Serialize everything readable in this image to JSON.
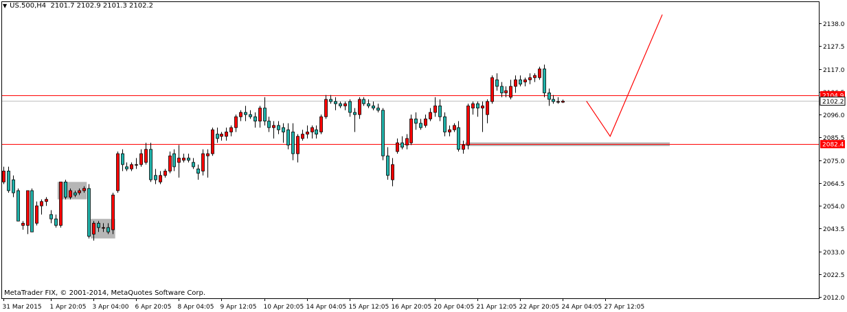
{
  "header": {
    "symbol_timeframe": "US.500,H4",
    "ohlc": "2101.7 2102.9 2101.3 2102.2"
  },
  "footer": {
    "copyright": "MetaTrader FIX, © 2001-2014, MetaQuotes Software Corp."
  },
  "colors": {
    "bull": "#ff0000",
    "bear": "#20b2aa",
    "outline": "#000000",
    "level": "#ff0000",
    "zone": "#a9a9a9",
    "projection": "#ff0000"
  },
  "chart_data": {
    "type": "candlestick",
    "title": "",
    "ylim": [
      2011.0,
      2143.8
    ],
    "y_ticks": [
      "2138.0",
      "2127.5",
      "2117.0",
      "2106.5",
      "2096.0",
      "2085.5",
      "2075.0",
      "2064.5",
      "2054.0",
      "2043.5",
      "2033.0",
      "2022.5",
      "2012.0"
    ],
    "x_ticks": [
      {
        "label": "31 Mar 2015",
        "index": 0
      },
      {
        "label": "1 Apr 20:05",
        "index": 10
      },
      {
        "label": "3 Apr 04:00",
        "index": 19
      },
      {
        "label": "6 Apr 20:05",
        "index": 28
      },
      {
        "label": "8 Apr 04:05",
        "index": 37
      },
      {
        "label": "9 Apr 12:05",
        "index": 46
      },
      {
        "label": "10 Apr 20:05",
        "index": 55
      },
      {
        "label": "14 Apr 04:05",
        "index": 64
      },
      {
        "label": "15 Apr 12:05",
        "index": 73
      },
      {
        "label": "16 Apr 20:05",
        "index": 82
      },
      {
        "label": "20 Apr 04:05",
        "index": 91
      },
      {
        "label": "21 Apr 12:05",
        "index": 100
      },
      {
        "label": "22 Apr 20:05",
        "index": 109
      },
      {
        "label": "24 Apr 04:05",
        "index": 118
      },
      {
        "label": "27 Apr 12:05",
        "index": 127
      }
    ],
    "candles": [
      {
        "o": 2065,
        "h": 2072,
        "l": 2064,
        "c": 2070
      },
      {
        "o": 2070,
        "h": 2072,
        "l": 2060,
        "c": 2061
      },
      {
        "o": 2066,
        "h": 2068,
        "l": 2058,
        "c": 2060
      },
      {
        "o": 2061,
        "h": 2062,
        "l": 2047,
        "c": 2047
      },
      {
        "o": 2045,
        "h": 2047,
        "l": 2043,
        "c": 2046
      },
      {
        "o": 2045,
        "h": 2061,
        "l": 2041,
        "c": 2061
      },
      {
        "o": 2061,
        "h": 2062,
        "l": 2042,
        "c": 2042
      },
      {
        "o": 2046,
        "h": 2056,
        "l": 2045,
        "c": 2054
      },
      {
        "o": 2054,
        "h": 2057,
        "l": 2050,
        "c": 2056
      },
      {
        "o": 2056,
        "h": 2058,
        "l": 2054,
        "c": 2057
      },
      {
        "o": 2050,
        "h": 2052,
        "l": 2046,
        "c": 2048
      },
      {
        "o": 2048,
        "h": 2050,
        "l": 2044,
        "c": 2045
      },
      {
        "o": 2045,
        "h": 2065,
        "l": 2044,
        "c": 2065
      },
      {
        "o": 2065,
        "h": 2066,
        "l": 2057,
        "c": 2058
      },
      {
        "o": 2058,
        "h": 2062,
        "l": 2057,
        "c": 2061
      },
      {
        "o": 2060,
        "h": 2061,
        "l": 2058,
        "c": 2059
      },
      {
        "o": 2060,
        "h": 2062,
        "l": 2059,
        "c": 2061
      },
      {
        "o": 2061,
        "h": 2063,
        "l": 2060,
        "c": 2062
      },
      {
        "o": 2062,
        "h": 2064,
        "l": 2039,
        "c": 2040
      },
      {
        "o": 2041,
        "h": 2047,
        "l": 2038,
        "c": 2046
      },
      {
        "o": 2046,
        "h": 2047,
        "l": 2042,
        "c": 2044
      },
      {
        "o": 2044,
        "h": 2046,
        "l": 2042,
        "c": 2044
      },
      {
        "o": 2044,
        "h": 2046,
        "l": 2041,
        "c": 2042
      },
      {
        "o": 2043,
        "h": 2060,
        "l": 2041,
        "c": 2059
      },
      {
        "o": 2061,
        "h": 2079,
        "l": 2060,
        "c": 2078
      },
      {
        "o": 2078,
        "h": 2080,
        "l": 2070,
        "c": 2073
      },
      {
        "o": 2072,
        "h": 2074,
        "l": 2070,
        "c": 2071
      },
      {
        "o": 2071,
        "h": 2074,
        "l": 2070,
        "c": 2073
      },
      {
        "o": 2073,
        "h": 2076,
        "l": 2071,
        "c": 2073
      },
      {
        "o": 2073,
        "h": 2080,
        "l": 2072,
        "c": 2078
      },
      {
        "o": 2074,
        "h": 2083,
        "l": 2073,
        "c": 2080
      },
      {
        "o": 2080,
        "h": 2083,
        "l": 2065,
        "c": 2066
      },
      {
        "o": 2068,
        "h": 2071,
        "l": 2064,
        "c": 2066
      },
      {
        "o": 2065,
        "h": 2070,
        "l": 2064,
        "c": 2068
      },
      {
        "o": 2068,
        "h": 2071,
        "l": 2067,
        "c": 2070
      },
      {
        "o": 2070,
        "h": 2079,
        "l": 2069,
        "c": 2077
      },
      {
        "o": 2078,
        "h": 2080,
        "l": 2070,
        "c": 2072
      },
      {
        "o": 2074,
        "h": 2082,
        "l": 2067,
        "c": 2076
      },
      {
        "o": 2075,
        "h": 2078,
        "l": 2074,
        "c": 2076
      },
      {
        "o": 2076,
        "h": 2078,
        "l": 2074,
        "c": 2075
      },
      {
        "o": 2074,
        "h": 2076,
        "l": 2071,
        "c": 2072
      },
      {
        "o": 2071,
        "h": 2073,
        "l": 2066,
        "c": 2069
      },
      {
        "o": 2070,
        "h": 2080,
        "l": 2068,
        "c": 2078
      },
      {
        "o": 2077,
        "h": 2080,
        "l": 2067,
        "c": 2078
      },
      {
        "o": 2078,
        "h": 2090,
        "l": 2077,
        "c": 2089
      },
      {
        "o": 2087,
        "h": 2090,
        "l": 2083,
        "c": 2085
      },
      {
        "o": 2086,
        "h": 2088,
        "l": 2084,
        "c": 2087
      },
      {
        "o": 2086,
        "h": 2090,
        "l": 2084,
        "c": 2088
      },
      {
        "o": 2088,
        "h": 2091,
        "l": 2086,
        "c": 2090
      },
      {
        "o": 2090,
        "h": 2096,
        "l": 2088,
        "c": 2095
      },
      {
        "o": 2095,
        "h": 2098,
        "l": 2093,
        "c": 2097
      },
      {
        "o": 2097,
        "h": 2100,
        "l": 2093,
        "c": 2096
      },
      {
        "o": 2096,
        "h": 2098,
        "l": 2094,
        "c": 2095
      },
      {
        "o": 2095,
        "h": 2097,
        "l": 2090,
        "c": 2093
      },
      {
        "o": 2093,
        "h": 2100,
        "l": 2090,
        "c": 2099
      },
      {
        "o": 2099,
        "h": 2104,
        "l": 2091,
        "c": 2093
      },
      {
        "o": 2093,
        "h": 2095,
        "l": 2088,
        "c": 2090
      },
      {
        "o": 2090,
        "h": 2093,
        "l": 2085,
        "c": 2091
      },
      {
        "o": 2091,
        "h": 2093,
        "l": 2087,
        "c": 2089
      },
      {
        "o": 2090,
        "h": 2092,
        "l": 2083,
        "c": 2088
      },
      {
        "o": 2089,
        "h": 2092,
        "l": 2080,
        "c": 2082
      },
      {
        "o": 2088,
        "h": 2092,
        "l": 2075,
        "c": 2078
      },
      {
        "o": 2078,
        "h": 2087,
        "l": 2074,
        "c": 2086
      },
      {
        "o": 2085,
        "h": 2089,
        "l": 2084,
        "c": 2087
      },
      {
        "o": 2087,
        "h": 2091,
        "l": 2085,
        "c": 2088
      },
      {
        "o": 2088,
        "h": 2091,
        "l": 2085,
        "c": 2090
      },
      {
        "o": 2089,
        "h": 2091,
        "l": 2085,
        "c": 2087
      },
      {
        "o": 2088,
        "h": 2096,
        "l": 2087,
        "c": 2095
      },
      {
        "o": 2095,
        "h": 2105,
        "l": 2094,
        "c": 2103
      },
      {
        "o": 2103,
        "h": 2105,
        "l": 2101,
        "c": 2102
      },
      {
        "o": 2102,
        "h": 2104,
        "l": 2098,
        "c": 2101
      },
      {
        "o": 2101,
        "h": 2102,
        "l": 2099,
        "c": 2100
      },
      {
        "o": 2100,
        "h": 2102,
        "l": 2098,
        "c": 2101
      },
      {
        "o": 2102,
        "h": 2103,
        "l": 2095,
        "c": 2097
      },
      {
        "o": 2097,
        "h": 2099,
        "l": 2088,
        "c": 2096
      },
      {
        "o": 2096,
        "h": 2104,
        "l": 2094,
        "c": 2103
      },
      {
        "o": 2103,
        "h": 2104,
        "l": 2100,
        "c": 2101
      },
      {
        "o": 2101,
        "h": 2103,
        "l": 2099,
        "c": 2100
      },
      {
        "o": 2100,
        "h": 2102,
        "l": 2098,
        "c": 2099
      },
      {
        "o": 2099,
        "h": 2101,
        "l": 2097,
        "c": 2098
      },
      {
        "o": 2098,
        "h": 2099,
        "l": 2075,
        "c": 2077
      },
      {
        "o": 2077,
        "h": 2081,
        "l": 2066,
        "c": 2068
      },
      {
        "o": 2066,
        "h": 2076,
        "l": 2063,
        "c": 2073
      },
      {
        "o": 2079,
        "h": 2085,
        "l": 2078,
        "c": 2083
      },
      {
        "o": 2083,
        "h": 2086,
        "l": 2080,
        "c": 2081
      },
      {
        "o": 2082,
        "h": 2087,
        "l": 2080,
        "c": 2085
      },
      {
        "o": 2083,
        "h": 2096,
        "l": 2082,
        "c": 2094
      },
      {
        "o": 2094,
        "h": 2097,
        "l": 2089,
        "c": 2092
      },
      {
        "o": 2092,
        "h": 2094,
        "l": 2089,
        "c": 2090
      },
      {
        "o": 2091,
        "h": 2096,
        "l": 2090,
        "c": 2094
      },
      {
        "o": 2094,
        "h": 2099,
        "l": 2093,
        "c": 2097
      },
      {
        "o": 2097,
        "h": 2104,
        "l": 2095,
        "c": 2100
      },
      {
        "o": 2100,
        "h": 2103,
        "l": 2093,
        "c": 2095
      },
      {
        "o": 2095,
        "h": 2097,
        "l": 2086,
        "c": 2088
      },
      {
        "o": 2088,
        "h": 2091,
        "l": 2086,
        "c": 2089
      },
      {
        "o": 2089,
        "h": 2092,
        "l": 2088,
        "c": 2091
      },
      {
        "o": 2090,
        "h": 2093,
        "l": 2079,
        "c": 2080
      },
      {
        "o": 2080,
        "h": 2084,
        "l": 2078,
        "c": 2082
      },
      {
        "o": 2082,
        "h": 2101,
        "l": 2080,
        "c": 2100
      },
      {
        "o": 2099,
        "h": 2102,
        "l": 2096,
        "c": 2101
      },
      {
        "o": 2101,
        "h": 2102,
        "l": 2095,
        "c": 2099
      },
      {
        "o": 2099,
        "h": 2102,
        "l": 2088,
        "c": 2100
      },
      {
        "o": 2096,
        "h": 2103,
        "l": 2092,
        "c": 2102
      },
      {
        "o": 2102,
        "h": 2114,
        "l": 2101,
        "c": 2113
      },
      {
        "o": 2112,
        "h": 2115,
        "l": 2107,
        "c": 2109
      },
      {
        "o": 2109,
        "h": 2111,
        "l": 2104,
        "c": 2106
      },
      {
        "o": 2106,
        "h": 2109,
        "l": 2104,
        "c": 2107
      },
      {
        "o": 2104,
        "h": 2112,
        "l": 2103,
        "c": 2109
      },
      {
        "o": 2109,
        "h": 2114,
        "l": 2106,
        "c": 2112
      },
      {
        "o": 2112,
        "h": 2114,
        "l": 2109,
        "c": 2110
      },
      {
        "o": 2111,
        "h": 2113,
        "l": 2109,
        "c": 2112
      },
      {
        "o": 2112,
        "h": 2115,
        "l": 2110,
        "c": 2113
      },
      {
        "o": 2113,
        "h": 2115,
        "l": 2111,
        "c": 2114
      },
      {
        "o": 2113,
        "h": 2118,
        "l": 2112,
        "c": 2117
      },
      {
        "o": 2117,
        "h": 2119,
        "l": 2104,
        "c": 2106
      },
      {
        "o": 2106,
        "h": 2108,
        "l": 2100,
        "c": 2103
      },
      {
        "o": 2103,
        "h": 2105,
        "l": 2101,
        "c": 2102
      },
      {
        "o": 2102,
        "h": 2104,
        "l": 2101,
        "c": 2102
      },
      {
        "o": 2101.7,
        "h": 2102.9,
        "l": 2101.3,
        "c": 2102.2
      }
    ],
    "levels": [
      {
        "price": 2104.9,
        "label": "2104.9",
        "color": "#ff0000"
      },
      {
        "price": 2082.4,
        "label": "2082.4",
        "color": "#ff0000"
      }
    ],
    "current_price": {
      "price": 2102.2,
      "label": "2102.2"
    },
    "zones": [
      {
        "start_index": 12,
        "end_index": 17,
        "low": 2057,
        "high": 2065
      },
      {
        "start_index": 19,
        "end_index": 23,
        "low": 2039,
        "high": 2048
      },
      {
        "start_index": 98,
        "end_index": 140,
        "low": 2081.5,
        "high": 2083.2
      }
    ],
    "projection": [
      {
        "index": 123,
        "price": 2102.2
      },
      {
        "index": 128,
        "price": 2086
      },
      {
        "index": 139,
        "price": 2142
      }
    ]
  }
}
